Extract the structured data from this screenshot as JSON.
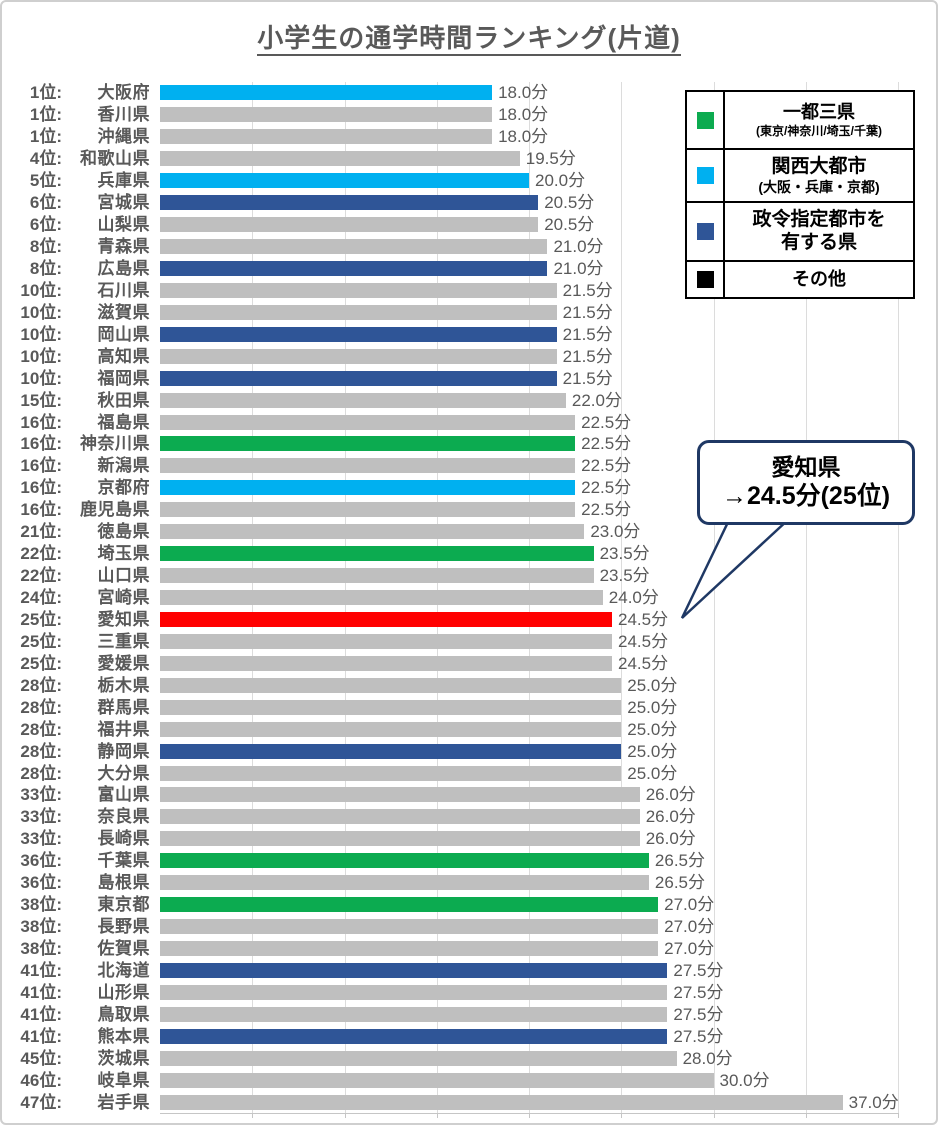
{
  "title": "小学生の通学時間ランキング(片道)",
  "colors": {
    "itto": "#0CAB50",
    "kansai": "#00B0F0",
    "seirei": "#2F5597",
    "other": "#BFBFBF",
    "highlight": "#FF0000",
    "label_text": "#595959",
    "grid": "#DCDCDC",
    "callout_border": "#1F3864",
    "legend_other": "#000000"
  },
  "legend": {
    "items": [
      {
        "label": "一都三県",
        "sublabel": "(東京/神奈川/埼玉/千葉)",
        "color_key": "itto"
      },
      {
        "label": "関西大都市",
        "sublabel": "(大阪・兵庫・京都)",
        "color_key": "kansai"
      },
      {
        "label": "政令指定都市を\n有する県",
        "sublabel": "",
        "color_key": "seirei"
      },
      {
        "label": "その他",
        "sublabel": "",
        "color_key": "legend_other"
      }
    ]
  },
  "callout": {
    "line1": "愛知県",
    "line2": "→24.5分(25位)"
  },
  "chart_data": {
    "type": "bar",
    "orientation": "horizontal",
    "title": "小学生の通学時間ランキング(片道)",
    "xlabel": "",
    "ylabel": "",
    "xlim": [
      0,
      40
    ],
    "gridline_step": 5,
    "grid": true,
    "unit": "分",
    "legend_position": "top-right",
    "rows": [
      {
        "rank": "1位:",
        "name": "大阪府",
        "value": 18.0,
        "category": "kansai"
      },
      {
        "rank": "1位:",
        "name": "香川県",
        "value": 18.0,
        "category": "other"
      },
      {
        "rank": "1位:",
        "name": "沖縄県",
        "value": 18.0,
        "category": "other"
      },
      {
        "rank": "4位:",
        "name": "和歌山県",
        "value": 19.5,
        "category": "other"
      },
      {
        "rank": "5位:",
        "name": "兵庫県",
        "value": 20.0,
        "category": "kansai"
      },
      {
        "rank": "6位:",
        "name": "宮城県",
        "value": 20.5,
        "category": "seirei"
      },
      {
        "rank": "6位:",
        "name": "山梨県",
        "value": 20.5,
        "category": "other"
      },
      {
        "rank": "8位:",
        "name": "青森県",
        "value": 21.0,
        "category": "other"
      },
      {
        "rank": "8位:",
        "name": "広島県",
        "value": 21.0,
        "category": "seirei"
      },
      {
        "rank": "10位:",
        "name": "石川県",
        "value": 21.5,
        "category": "other"
      },
      {
        "rank": "10位:",
        "name": "滋賀県",
        "value": 21.5,
        "category": "other"
      },
      {
        "rank": "10位:",
        "name": "岡山県",
        "value": 21.5,
        "category": "seirei"
      },
      {
        "rank": "10位:",
        "name": "高知県",
        "value": 21.5,
        "category": "other"
      },
      {
        "rank": "10位:",
        "name": "福岡県",
        "value": 21.5,
        "category": "seirei"
      },
      {
        "rank": "15位:",
        "name": "秋田県",
        "value": 22.0,
        "category": "other"
      },
      {
        "rank": "16位:",
        "name": "福島県",
        "value": 22.5,
        "category": "other"
      },
      {
        "rank": "16位:",
        "name": "神奈川県",
        "value": 22.5,
        "category": "itto"
      },
      {
        "rank": "16位:",
        "name": "新潟県",
        "value": 22.5,
        "category": "other"
      },
      {
        "rank": "16位:",
        "name": "京都府",
        "value": 22.5,
        "category": "kansai"
      },
      {
        "rank": "16位:",
        "name": "鹿児島県",
        "value": 22.5,
        "category": "other"
      },
      {
        "rank": "21位:",
        "name": "徳島県",
        "value": 23.0,
        "category": "other"
      },
      {
        "rank": "22位:",
        "name": "埼玉県",
        "value": 23.5,
        "category": "itto"
      },
      {
        "rank": "22位:",
        "name": "山口県",
        "value": 23.5,
        "category": "other"
      },
      {
        "rank": "24位:",
        "name": "宮崎県",
        "value": 24.0,
        "category": "other"
      },
      {
        "rank": "25位:",
        "name": "愛知県",
        "value": 24.5,
        "category": "highlight"
      },
      {
        "rank": "25位:",
        "name": "三重県",
        "value": 24.5,
        "category": "other"
      },
      {
        "rank": "25位:",
        "name": "愛媛県",
        "value": 24.5,
        "category": "other"
      },
      {
        "rank": "28位:",
        "name": "栃木県",
        "value": 25.0,
        "category": "other"
      },
      {
        "rank": "28位:",
        "name": "群馬県",
        "value": 25.0,
        "category": "other"
      },
      {
        "rank": "28位:",
        "name": "福井県",
        "value": 25.0,
        "category": "other"
      },
      {
        "rank": "28位:",
        "name": "静岡県",
        "value": 25.0,
        "category": "seirei"
      },
      {
        "rank": "28位:",
        "name": "大分県",
        "value": 25.0,
        "category": "other"
      },
      {
        "rank": "33位:",
        "name": "富山県",
        "value": 26.0,
        "category": "other"
      },
      {
        "rank": "33位:",
        "name": "奈良県",
        "value": 26.0,
        "category": "other"
      },
      {
        "rank": "33位:",
        "name": "長崎県",
        "value": 26.0,
        "category": "other"
      },
      {
        "rank": "36位:",
        "name": "千葉県",
        "value": 26.5,
        "category": "itto"
      },
      {
        "rank": "36位:",
        "name": "島根県",
        "value": 26.5,
        "category": "other"
      },
      {
        "rank": "38位:",
        "name": "東京都",
        "value": 27.0,
        "category": "itto"
      },
      {
        "rank": "38位:",
        "name": "長野県",
        "value": 27.0,
        "category": "other"
      },
      {
        "rank": "38位:",
        "name": "佐賀県",
        "value": 27.0,
        "category": "other"
      },
      {
        "rank": "41位:",
        "name": "北海道",
        "value": 27.5,
        "category": "seirei"
      },
      {
        "rank": "41位:",
        "name": "山形県",
        "value": 27.5,
        "category": "other"
      },
      {
        "rank": "41位:",
        "name": "鳥取県",
        "value": 27.5,
        "category": "other"
      },
      {
        "rank": "41位:",
        "name": "熊本県",
        "value": 27.5,
        "category": "seirei"
      },
      {
        "rank": "45位:",
        "name": "茨城県",
        "value": 28.0,
        "category": "other"
      },
      {
        "rank": "46位:",
        "name": "岐阜県",
        "value": 30.0,
        "category": "other"
      },
      {
        "rank": "47位:",
        "name": "岩手県",
        "value": 37.0,
        "category": "other"
      }
    ]
  }
}
